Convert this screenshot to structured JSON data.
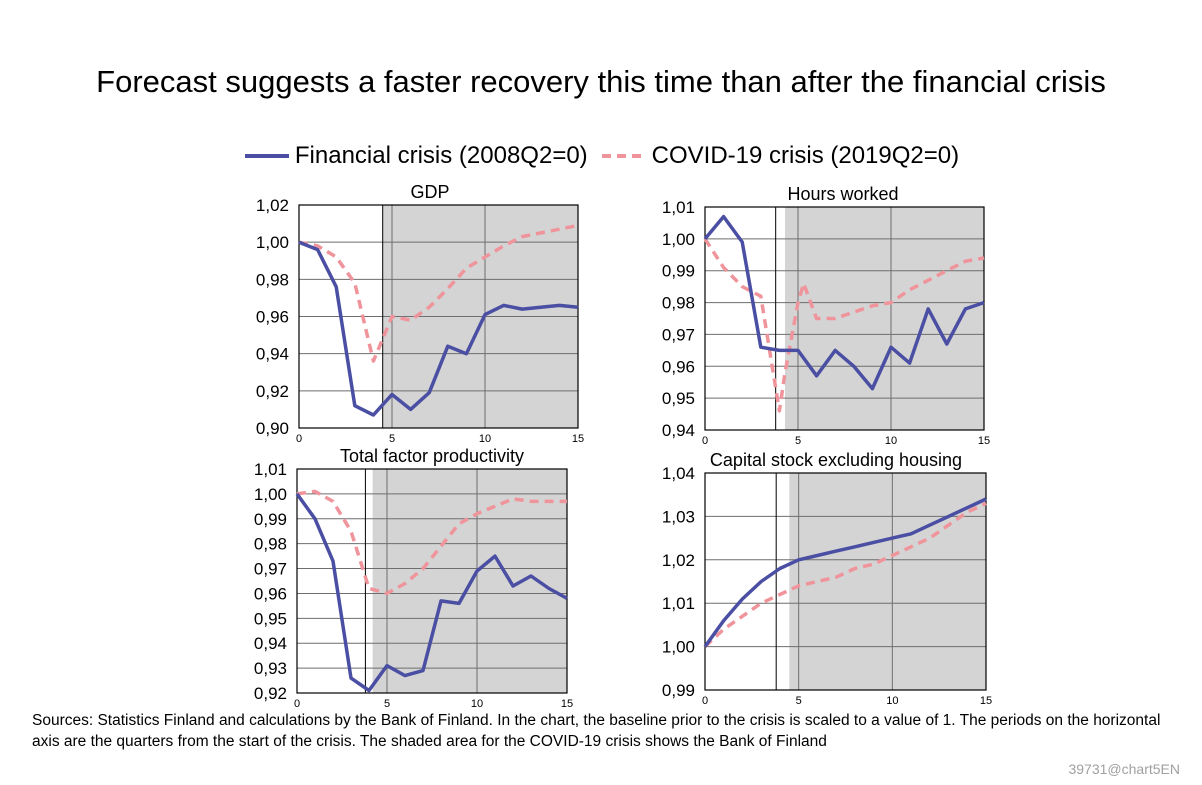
{
  "title": "Forecast suggests a faster recovery this time than after the financial crisis",
  "legend": [
    {
      "label": "Financial crisis (2008Q2=0)",
      "color": "#4a4fa3",
      "style": "solid"
    },
    {
      "label": "COVID-19 crisis (2019Q2=0)",
      "color": "#f0949c",
      "style": "dashed"
    }
  ],
  "sources": "Sources: Statistics Finland and calculations by the Bank of Finland. In the chart, the baseline prior to the crisis is scaled to a value of 1. The periods on the horizontal axis are the quarters from the start of the crisis. The shaded area for the COVID-19 crisis shows the Bank of Finland",
  "chart_code": "39731@chart5EN",
  "colors": {
    "financial": "#4a4fa3",
    "covid": "#f0949c",
    "shade": "#d4d4d4",
    "grid": "#6e6e6e"
  },
  "chart_data": [
    {
      "type": "line",
      "title": "GDP",
      "xlim": [
        0,
        15
      ],
      "ylim": [
        0.9,
        1.02
      ],
      "x_ticks": [
        "0",
        "5",
        "10",
        "15"
      ],
      "y_ticks": [
        "0,90",
        "0,92",
        "0,94",
        "0,96",
        "0,98",
        "1,00",
        "1,02"
      ],
      "shade_from": 4.5,
      "vline": 4.5,
      "series": [
        {
          "name": "Financial crisis (2008Q2=0)",
          "x": [
            0,
            1,
            2,
            3,
            4,
            5,
            6,
            7,
            8,
            9,
            10,
            11,
            12,
            13,
            14,
            15
          ],
          "values": [
            1.0,
            0.996,
            0.976,
            0.912,
            0.907,
            0.918,
            0.91,
            0.919,
            0.944,
            0.94,
            0.961,
            0.966,
            0.964,
            0.965,
            0.966,
            0.965
          ]
        },
        {
          "name": "COVID-19 crisis (2019Q2=0)",
          "x": [
            0,
            1,
            2,
            3,
            4,
            5,
            6,
            7,
            8,
            9,
            10,
            11,
            12,
            13,
            14,
            15
          ],
          "values": [
            1.0,
            0.998,
            0.992,
            0.978,
            0.936,
            0.96,
            0.958,
            0.965,
            0.975,
            0.986,
            0.992,
            0.998,
            1.003,
            1.005,
            1.007,
            1.009
          ]
        }
      ]
    },
    {
      "type": "line",
      "title": "Hours worked",
      "xlim": [
        0,
        15
      ],
      "ylim": [
        0.94,
        1.01
      ],
      "x_ticks": [
        "0",
        "5",
        "10",
        "15"
      ],
      "y_ticks": [
        "0,94",
        "0,95",
        "0,96",
        "0,97",
        "0,98",
        "0,99",
        "1,00",
        "1,01"
      ],
      "shade_from": 4.3,
      "vline": 3.8,
      "series": [
        {
          "name": "Financial crisis (2008Q2=0)",
          "x": [
            0,
            1,
            2,
            3,
            4,
            5,
            6,
            7,
            8,
            9,
            10,
            11,
            12,
            13,
            14,
            15
          ],
          "values": [
            1.0,
            1.007,
            0.999,
            0.966,
            0.965,
            0.965,
            0.957,
            0.965,
            0.96,
            0.953,
            0.966,
            0.961,
            0.978,
            0.967,
            0.978,
            0.98
          ]
        },
        {
          "name": "COVID-19 crisis (2019Q2=0)",
          "x": [
            0,
            1,
            2,
            3,
            4,
            4.3,
            5,
            5.3,
            6,
            7,
            8,
            9,
            10,
            11,
            12,
            13,
            14,
            15
          ],
          "values": [
            1.0,
            0.991,
            0.985,
            0.982,
            0.946,
            0.958,
            0.98,
            0.986,
            0.975,
            0.975,
            0.977,
            0.979,
            0.98,
            0.984,
            0.987,
            0.99,
            0.993,
            0.994
          ]
        }
      ]
    },
    {
      "type": "line",
      "title": "Total factor productivity",
      "xlim": [
        0,
        15
      ],
      "ylim": [
        0.92,
        1.01
      ],
      "x_ticks": [
        "0",
        "5",
        "10",
        "15"
      ],
      "y_ticks": [
        "0,92",
        "0,93",
        "0,94",
        "0,95",
        "0,96",
        "0,97",
        "0,98",
        "0,99",
        "1,00",
        "1,01"
      ],
      "shade_from": 4.2,
      "vline": 3.8,
      "series": [
        {
          "name": "Financial crisis (2008Q2=0)",
          "x": [
            0,
            1,
            2,
            3,
            4,
            5,
            6,
            7,
            8,
            9,
            10,
            11,
            12,
            13,
            14,
            15
          ],
          "values": [
            1.0,
            0.99,
            0.973,
            0.926,
            0.921,
            0.931,
            0.927,
            0.929,
            0.957,
            0.956,
            0.969,
            0.975,
            0.963,
            0.967,
            0.962,
            0.958
          ]
        },
        {
          "name": "COVID-19 crisis (2019Q2=0)",
          "x": [
            0,
            1,
            2,
            3,
            4,
            5,
            6,
            7,
            8,
            9,
            10,
            11,
            12,
            13,
            14,
            15
          ],
          "values": [
            1.0,
            1.001,
            0.997,
            0.985,
            0.962,
            0.96,
            0.964,
            0.97,
            0.979,
            0.988,
            0.992,
            0.995,
            0.998,
            0.997,
            0.997,
            0.997
          ]
        }
      ]
    },
    {
      "type": "line",
      "title": "Capital stock excluding housing",
      "xlim": [
        0,
        15
      ],
      "ylim": [
        0.99,
        1.04
      ],
      "x_ticks": [
        "0",
        "5",
        "10",
        "15"
      ],
      "y_ticks": [
        "0,99",
        "1,00",
        "1,01",
        "1,02",
        "1,03",
        "1,04"
      ],
      "shade_from": 4.5,
      "vline": 3.8,
      "series": [
        {
          "name": "Financial crisis (2008Q2=0)",
          "x": [
            0,
            1,
            2,
            3,
            4,
            5,
            6,
            7,
            8,
            9,
            10,
            11,
            12,
            13,
            14,
            15
          ],
          "values": [
            1.0,
            1.006,
            1.011,
            1.015,
            1.018,
            1.02,
            1.021,
            1.022,
            1.023,
            1.024,
            1.025,
            1.026,
            1.028,
            1.03,
            1.032,
            1.034
          ]
        },
        {
          "name": "COVID-19 crisis (2019Q2=0)",
          "x": [
            0,
            1,
            2,
            3,
            4,
            5,
            6,
            7,
            8,
            9,
            10,
            11,
            12,
            13,
            14,
            15
          ],
          "values": [
            1.0,
            1.004,
            1.007,
            1.01,
            1.012,
            1.014,
            1.015,
            1.016,
            1.018,
            1.019,
            1.021,
            1.023,
            1.025,
            1.028,
            1.031,
            1.033
          ]
        }
      ]
    }
  ]
}
